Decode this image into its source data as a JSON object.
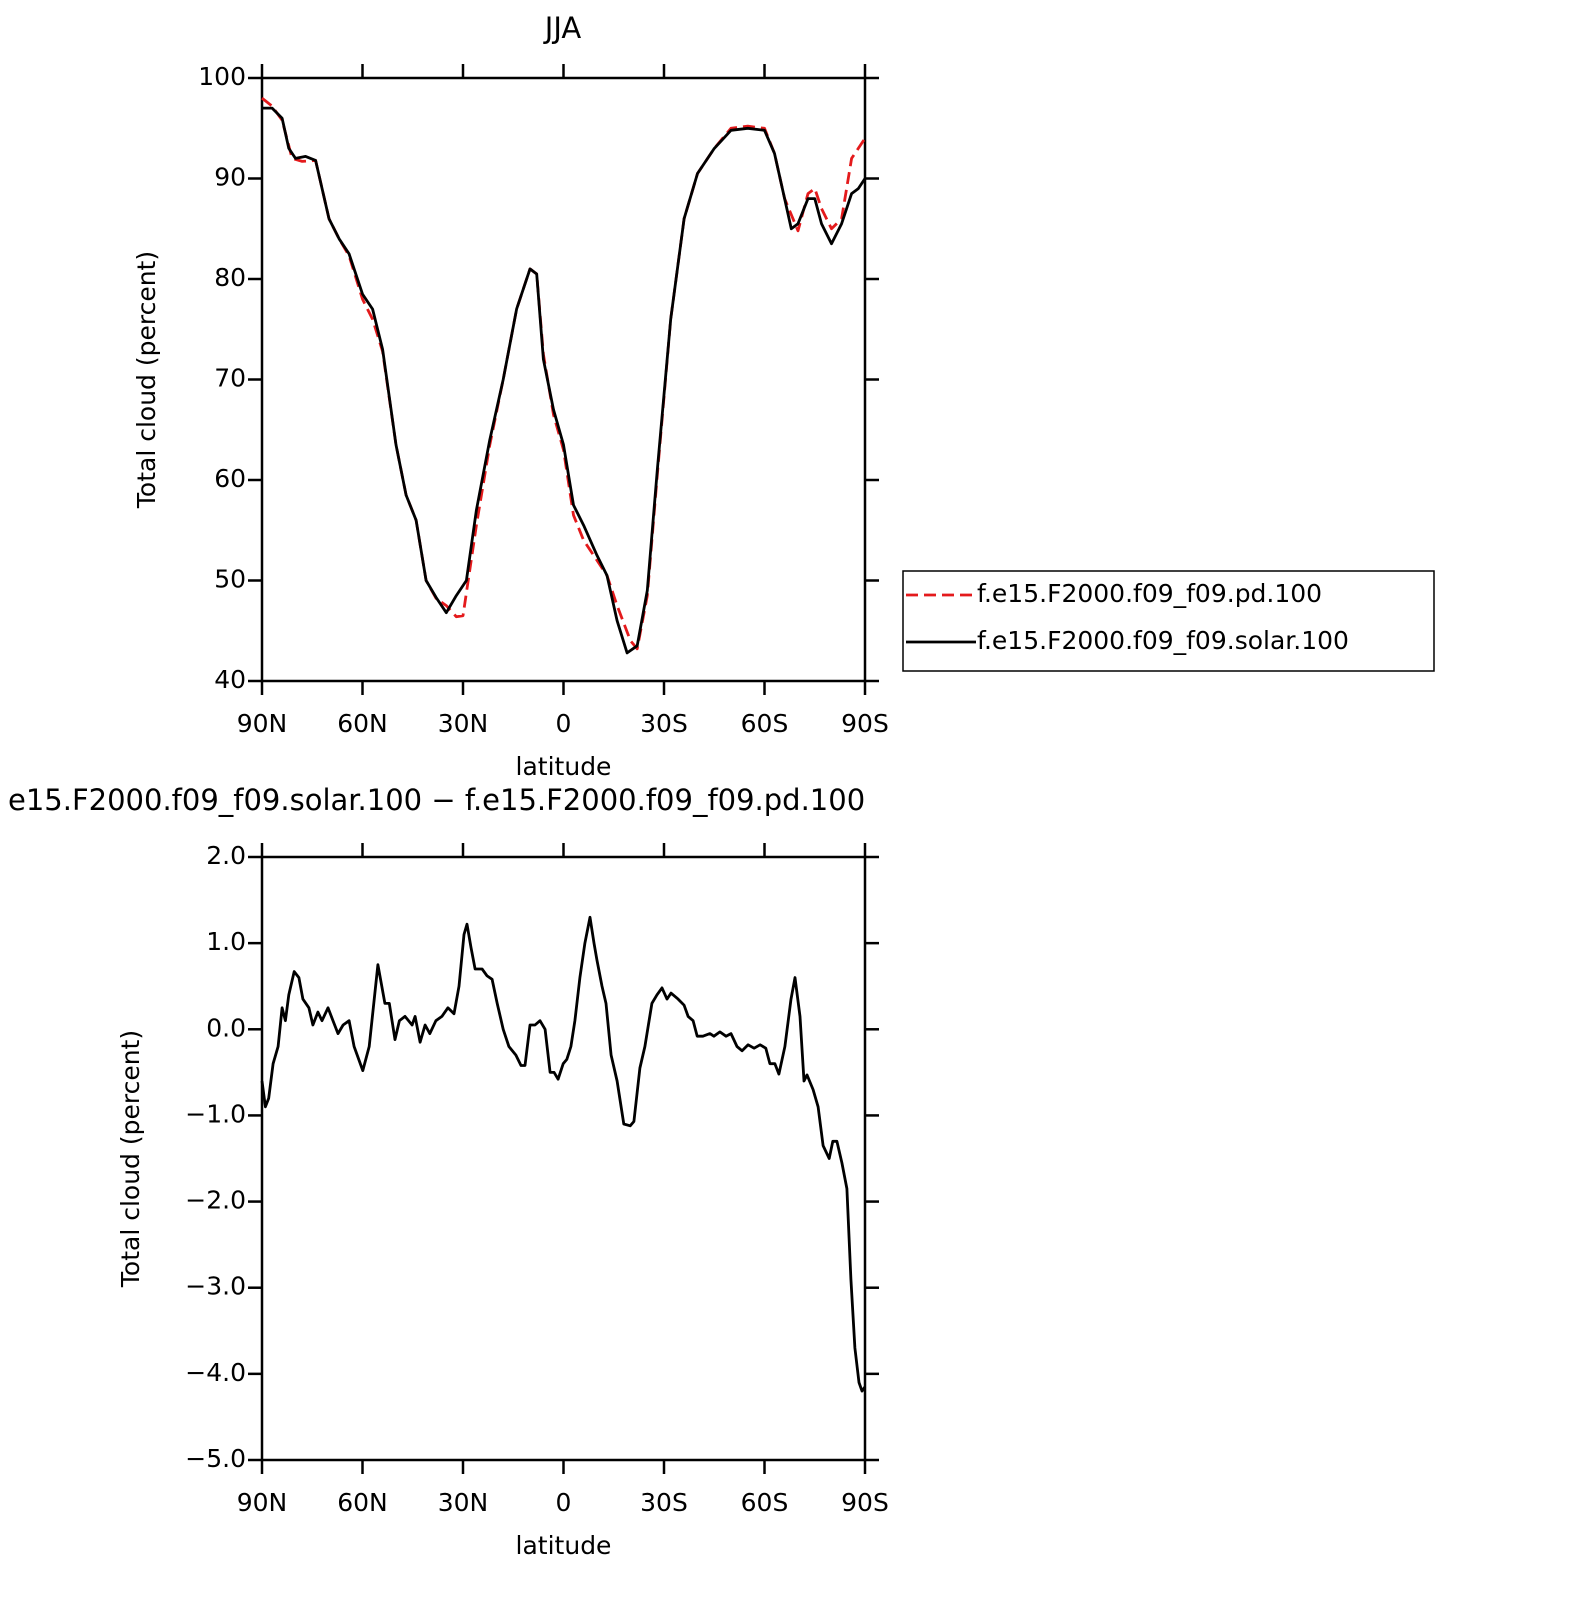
{
  "chart_data": [
    {
      "type": "line",
      "title": "JJA",
      "xlabel": "latitude",
      "ylabel": "Total cloud (percent)",
      "xlim": [
        90,
        -90
      ],
      "xticks": [
        {
          "value": 90,
          "label": "90N"
        },
        {
          "value": 60,
          "label": "60N"
        },
        {
          "value": 30,
          "label": "30N"
        },
        0,
        {
          "value": -30,
          "label": "30S"
        },
        {
          "value": -60,
          "label": "60S"
        },
        {
          "value": -90,
          "label": "90S"
        }
      ],
      "ylim": [
        40,
        100
      ],
      "yticks": [
        40,
        50,
        60,
        70,
        80,
        90,
        100
      ],
      "legend": "outside-right",
      "series": [
        {
          "name": "f.e15.F2000.f09_f09.pd.100",
          "color": "#e41a1c",
          "dash": true,
          "x": [
            90,
            87,
            84,
            81,
            78,
            74,
            70,
            67,
            64,
            60,
            57,
            54,
            50,
            47,
            44,
            41,
            38,
            35,
            32,
            30,
            26,
            22,
            18,
            14,
            10,
            8,
            6,
            3,
            0,
            -3,
            -6,
            -10,
            -13,
            -16,
            -20,
            -22,
            -25,
            -28,
            -32,
            -36,
            -40,
            -45,
            -50,
            -55,
            -60,
            -63,
            -66,
            -70,
            -73,
            -75,
            -77,
            -80,
            -83,
            -86,
            -88,
            -90
          ],
          "values": [
            98,
            97.2,
            95.8,
            92,
            91.7,
            91.8,
            86,
            84,
            82.3,
            78,
            76,
            72.8,
            63.5,
            58.5,
            56,
            50,
            48.2,
            47.5,
            46.4,
            46.5,
            55.5,
            63.5,
            70,
            77,
            81,
            80.5,
            72.5,
            66.5,
            63,
            56.5,
            54,
            52,
            50.5,
            47.5,
            44,
            43.2,
            48.5,
            60.5,
            76,
            86,
            90.5,
            93,
            95,
            95.2,
            95,
            92.5,
            88,
            84.8,
            88.5,
            89,
            87,
            85,
            86,
            92,
            93,
            94
          ]
        },
        {
          "name": "f.e15.F2000.f09_f09.solar.100",
          "color": "#000000",
          "dash": false,
          "x": [
            90,
            87,
            84,
            82,
            80,
            77,
            74,
            70,
            67,
            64,
            60,
            57,
            54,
            50,
            47,
            44,
            41,
            38,
            35,
            32,
            29,
            26,
            22,
            18,
            14,
            10,
            8,
            6,
            3,
            0,
            -3,
            -6,
            -10,
            -13,
            -16,
            -19,
            -22,
            -25,
            -28,
            -32,
            -36,
            -40,
            -45,
            -50,
            -55,
            -60,
            -63,
            -66,
            -68,
            -70,
            -73,
            -75,
            -77,
            -80,
            -83,
            -86,
            -88,
            -90
          ],
          "values": [
            97,
            97,
            96,
            93,
            92,
            92.2,
            91.8,
            86,
            84,
            82.5,
            78.5,
            77,
            73,
            63.5,
            58.5,
            56,
            50,
            48.3,
            46.8,
            48.5,
            50,
            57,
            64,
            70,
            77,
            81,
            80.5,
            72,
            67,
            63.5,
            57.5,
            55.5,
            52.5,
            50.5,
            46,
            42.8,
            43.5,
            49,
            61,
            76,
            86,
            90.5,
            93,
            94.8,
            95,
            94.8,
            92.5,
            88,
            85,
            85.5,
            88,
            88,
            85.5,
            83.5,
            85.5,
            88.5,
            89,
            90
          ]
        }
      ]
    },
    {
      "type": "line",
      "title": "e15.F2000.f09_f09.solar.100 − f.e15.F2000.f09_f09.pd.100",
      "xlabel": "latitude",
      "ylabel": "Total cloud (percent)",
      "xlim": [
        90,
        -90
      ],
      "xticks": [
        {
          "value": 90,
          "label": "90N"
        },
        {
          "value": 60,
          "label": "60N"
        },
        {
          "value": 30,
          "label": "30N"
        },
        0,
        {
          "value": -30,
          "label": "30S"
        },
        {
          "value": -60,
          "label": "60S"
        },
        {
          "value": -90,
          "label": "90S"
        }
      ],
      "ylim": [
        -5,
        2
      ],
      "yticks": [
        {
          "value": -5,
          "label": "−5.0"
        },
        {
          "value": -4,
          "label": "−4.0"
        },
        {
          "value": -3,
          "label": "−3.0"
        },
        {
          "value": -2,
          "label": "−2.0"
        },
        {
          "value": -1,
          "label": "−1.0"
        },
        {
          "value": 0,
          "label": "0.0"
        },
        {
          "value": 1,
          "label": "1.0"
        },
        {
          "value": 2,
          "label": "2.0"
        }
      ],
      "series": [
        {
          "color": "#000000",
          "x": [
            90,
            89,
            88,
            86.7,
            85.2,
            84,
            83,
            82,
            80.4,
            79,
            77.8,
            76,
            74.8,
            73.3,
            72.1,
            70.3,
            68.8,
            67.3,
            65.8,
            64,
            62.5,
            59.9,
            58,
            55.4,
            53.3,
            52,
            50.3,
            49,
            47.3,
            45.2,
            44.3,
            42.8,
            41.3,
            39.9,
            38.1,
            36.3,
            34.5,
            32.7,
            31.2,
            29.7,
            28.8,
            27.6,
            26.4,
            24.3,
            22.8,
            21.3,
            19.8,
            18,
            16.3,
            14.2,
            12.7,
            11.5,
            10,
            8.5,
            7,
            5.5,
            4,
            2.8,
            1.6,
            0.1,
            -1,
            -2.2,
            -3.4,
            -4.9,
            -6.4,
            -7.9,
            -9.1,
            -10,
            -11.5,
            -12.7,
            -14.2,
            -16,
            -18,
            -19.9,
            -21,
            -22.8,
            -24.3,
            -26.4,
            -27.9,
            -29.4,
            -30.9,
            -32.1,
            -34.2,
            -36,
            -37.2,
            -38.7,
            -39.9,
            -41.6,
            -43.7,
            -44.9,
            -46.7,
            -48.5,
            -50,
            -51.8,
            -53.3,
            -55.1,
            -56.9,
            -58.7,
            -60.4,
            -61.6,
            -63.1,
            -64.3,
            -66.1,
            -67.9,
            -69.1,
            -70.6,
            -71.8,
            -72.7,
            -74.5,
            -76,
            -77.5,
            -79.3,
            -80.4,
            -81.6,
            -83.1,
            -84.6,
            -85.8,
            -87,
            -88.2,
            -89.1,
            -90
          ],
          "values": [
            -0.6,
            -0.9,
            -0.8,
            -0.4,
            -0.2,
            0.25,
            0.1,
            0.4,
            0.67,
            0.6,
            0.35,
            0.25,
            0.05,
            0.2,
            0.1,
            0.25,
            0.1,
            -0.05,
            0.05,
            0.1,
            -0.2,
            -0.48,
            -0.2,
            0.75,
            0.3,
            0.3,
            -0.12,
            0.1,
            0.15,
            0.05,
            0.15,
            -0.15,
            0.05,
            -0.05,
            0.1,
            0.15,
            0.25,
            0.18,
            0.5,
            1.1,
            1.22,
            0.95,
            0.7,
            0.7,
            0.62,
            0.58,
            0.3,
            0,
            -0.2,
            -0.3,
            -0.42,
            -0.42,
            0.05,
            0.05,
            0.1,
            0,
            -0.5,
            -0.5,
            -0.58,
            -0.4,
            -0.35,
            -0.2,
            0.1,
            0.6,
            1,
            1.3,
            1,
            0.8,
            0.5,
            0.3,
            -0.3,
            -0.6,
            -1.1,
            -1.12,
            -1.07,
            -0.45,
            -0.2,
            0.3,
            0.4,
            0.48,
            0.35,
            0.42,
            0.35,
            0.28,
            0.15,
            0.1,
            -0.08,
            -0.08,
            -0.05,
            -0.08,
            -0.03,
            -0.08,
            -0.05,
            -0.2,
            -0.25,
            -0.18,
            -0.22,
            -0.18,
            -0.22,
            -0.4,
            -0.4,
            -0.52,
            -0.2,
            0.35,
            0.6,
            0.15,
            -0.6,
            -0.53,
            -0.7,
            -0.9,
            -1.35,
            -1.5,
            -1.3,
            -1.3,
            -1.55,
            -1.85,
            -2.9,
            -3.7,
            -4.1,
            -4.2,
            -4.15
          ]
        }
      ]
    }
  ]
}
